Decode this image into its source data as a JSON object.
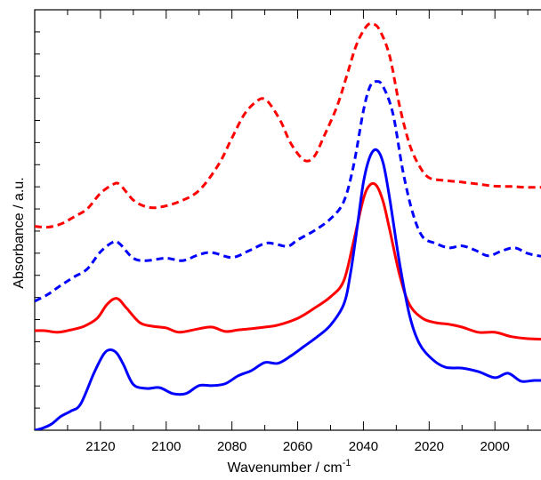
{
  "chart_data": {
    "type": "line",
    "title": "",
    "xlabel_main": "Wavenumber / cm",
    "xlabel_sup": "-1",
    "ylabel": "Absorbance / a.u.",
    "xlim": [
      2140,
      1983
    ],
    "x_reversed": true,
    "ylim": [
      0,
      100
    ],
    "y_ticks_labeled": false,
    "x_ticks": [
      2120,
      2100,
      2080,
      2060,
      2040,
      2020,
      2000
    ],
    "x_tick_labels": [
      "2120",
      "2100",
      "2080",
      "2060",
      "2040",
      "2020",
      "2000"
    ],
    "grid": false,
    "legend": "none",
    "series": [
      {
        "color": "#ff0000",
        "dash": "dashed",
        "x": [
          2140,
          2136,
          2132,
          2128,
          2124,
          2120,
          2116,
          2114,
          2110,
          2106,
          2102,
          2096,
          2090,
          2084,
          2080,
          2076,
          2072,
          2070,
          2068,
          2065,
          2062,
          2058,
          2055,
          2052,
          2048,
          2045,
          2042,
          2039,
          2037,
          2035,
          2032,
          2029,
          2026,
          2023,
          2020,
          2015,
          2010,
          2005,
          2000,
          1995,
          1990,
          1983
        ],
        "y": [
          51.2,
          51.0,
          51.8,
          53.6,
          55.6,
          59.5,
          61.8,
          61.6,
          57.8,
          56.1,
          56.0,
          57.4,
          60.2,
          66.8,
          73.4,
          79.6,
          82.9,
          83.1,
          81.4,
          77.3,
          71.9,
          67.8,
          68.7,
          73.8,
          81.4,
          89.2,
          97.0,
          101.5,
          102.0,
          100.4,
          93.9,
          81.4,
          71.9,
          66.4,
          63.4,
          62.7,
          62.3,
          61.8,
          61.3,
          61.2,
          61.0,
          61.0
        ]
      },
      {
        "color": "#0000ff",
        "dash": "dashed",
        "x": [
          2140,
          2136,
          2132,
          2128,
          2124,
          2120,
          2116,
          2114,
          2110,
          2106,
          2100,
          2095,
          2090,
          2086,
          2080,
          2075,
          2070,
          2067,
          2063,
          2060,
          2055,
          2050,
          2046,
          2043,
          2040,
          2038,
          2036,
          2034,
          2031,
          2028,
          2025,
          2022,
          2018,
          2014,
          2010,
          2006,
          2002,
          1998,
          1994,
          1990,
          1986,
          1983
        ],
        "y": [
          32.4,
          34.1,
          36.4,
          38.5,
          40.5,
          44.8,
          47.3,
          46.7,
          43.2,
          42.6,
          43.2,
          42.6,
          44.1,
          44.6,
          43.4,
          45.0,
          46.9,
          46.8,
          46.2,
          47.8,
          50.1,
          53.1,
          57.4,
          66.4,
          80.2,
          86.3,
          87.6,
          86.3,
          79.4,
          65.1,
          54.6,
          48.6,
          46.9,
          45.8,
          46.3,
          45.2,
          43.8,
          45.0,
          45.8,
          44.4,
          43.7,
          43.4
        ]
      },
      {
        "color": "#ff0000",
        "dash": "solid",
        "x": [
          2140,
          2137,
          2133,
          2129,
          2125,
          2121,
          2118,
          2115,
          2112,
          2108,
          2104,
          2100,
          2096,
          2090,
          2086,
          2082,
          2078,
          2074,
          2070,
          2066,
          2060,
          2055,
          2050,
          2046,
          2043,
          2040,
          2038,
          2036,
          2034,
          2032,
          2029,
          2026,
          2022,
          2018,
          2014,
          2010,
          2005,
          2000,
          1995,
          1990,
          1983
        ],
        "y": [
          25.0,
          25.0,
          24.6,
          25.2,
          26.1,
          28.1,
          31.6,
          33.1,
          30.6,
          27.0,
          26.1,
          25.7,
          24.6,
          25.5,
          25.9,
          24.8,
          25.2,
          25.5,
          25.9,
          26.4,
          28.1,
          30.6,
          33.5,
          37.5,
          47.3,
          58.1,
          61.6,
          61.4,
          57.4,
          50.3,
          39.0,
          31.6,
          28.1,
          27.0,
          26.6,
          25.9,
          24.6,
          24.6,
          23.5,
          23.0,
          22.8
        ]
      },
      {
        "color": "#0000ff",
        "dash": "solid",
        "x": [
          2140,
          2138,
          2135,
          2132,
          2129,
          2126,
          2122,
          2119,
          2117,
          2115,
          2113,
          2110,
          2106,
          2102,
          2098,
          2094,
          2090,
          2086,
          2082,
          2078,
          2074,
          2070,
          2066,
          2062,
          2058,
          2054,
          2050,
          2046,
          2044,
          2042,
          2040,
          2038,
          2036,
          2034,
          2032,
          2029,
          2026,
          2023,
          2019,
          2015,
          2010,
          2005,
          2000,
          1996,
          1992,
          1988,
          1983
        ],
        "y": [
          0.0,
          0.4,
          1.5,
          3.5,
          4.8,
          6.6,
          14.3,
          19.1,
          20.2,
          19.3,
          16.5,
          11.5,
          10.5,
          10.7,
          9.2,
          9.2,
          11.2,
          11.2,
          11.7,
          13.7,
          15.0,
          17.0,
          16.8,
          18.7,
          21.1,
          23.5,
          26.4,
          31.6,
          39.0,
          50.3,
          62.2,
          68.7,
          70.4,
          67.1,
          58.1,
          41.9,
          29.0,
          21.8,
          17.8,
          15.8,
          15.6,
          14.7,
          13.2,
          14.3,
          12.3,
          12.5,
          12.5
        ]
      }
    ]
  }
}
